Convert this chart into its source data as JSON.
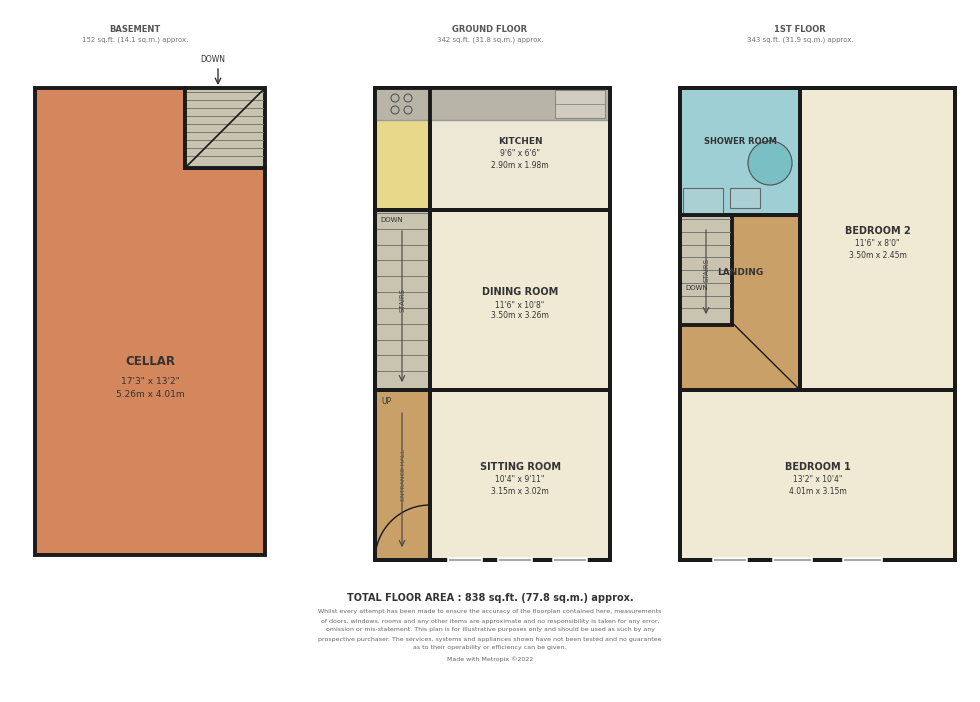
{
  "bg": "white",
  "wall_color": "#1a1a1a",
  "cellar_fill": "#d4875c",
  "stair_fill": "#c8c4b0",
  "kitchen_fill": "#ede8d5",
  "kitchen_yellow": "#e8d98a",
  "kitchen_grey": "#b8b5a8",
  "dining_fill": "#f0ead5",
  "sitting_fill": "#f0ead5",
  "entrance_fill": "#c8a068",
  "bedroom1_fill": "#f0ead5",
  "bedroom2_fill": "#f0ead5",
  "landing_fill": "#c8a068",
  "shower_fill": "#9ecfd4",
  "basement_header": "BASEMENT",
  "basement_sub": "152 sq.ft. (14.1 sq.m.) approx.",
  "ground_header": "GROUND FLOOR",
  "ground_sub": "342 sq.ft. (31.8 sq.m.) approx.",
  "first_header": "1ST FLOOR",
  "first_sub": "343 sq.ft. (31.9 sq.m.) approx.",
  "total_area": "TOTAL FLOOR AREA : 838 sq.ft. (77.8 sq.m.) approx.",
  "disclaimer_line1": "Whilst every attempt has been made to ensure the accuracy of the floorplan contained here, measurements",
  "disclaimer_line2": "of doors, windows, rooms and any other items are approximate and no responsibility is taken for any error,",
  "disclaimer_line3": "omission or mis-statement. This plan is for illustrative purposes only and should be used as such by any",
  "disclaimer_line4": "prospective purchaser. The services, systems and appliances shown have not been tested and no guarantee",
  "disclaimer_line5": "as to their operability or efficiency can be given.",
  "made_with": "Made with Metropix ©2022"
}
